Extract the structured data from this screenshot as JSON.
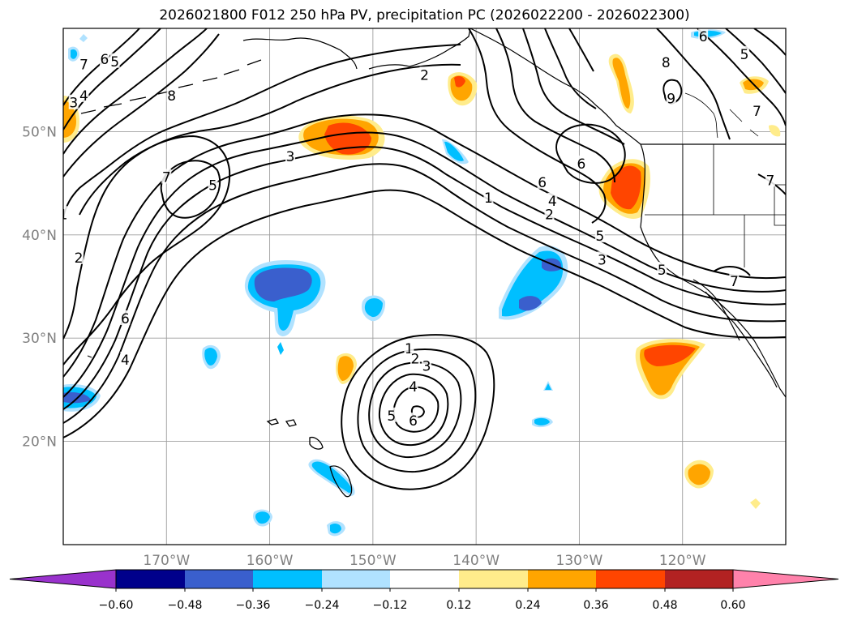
{
  "chart_data": {
    "type": "contour_map",
    "title": "2026021800 F012 250 hPa PV, precipitation PC (2026022200 - 2026022300)",
    "projection": "lat-lon",
    "lon_range": [
      -180,
      -110
    ],
    "lat_range": [
      10,
      60
    ],
    "lat_grid": [
      50,
      40,
      30,
      20
    ],
    "lon_grid": [
      -170,
      -160,
      -150,
      -140,
      -130,
      -120
    ],
    "lat_labels": [
      "50°N",
      "40°N",
      "30°N",
      "20°N"
    ],
    "lon_labels": [
      "170°W",
      "160°W",
      "150°W",
      "140°W",
      "130°W",
      "120°W"
    ],
    "colorbar": {
      "levels": [
        -0.6,
        -0.48,
        -0.36,
        -0.24,
        -0.12,
        0.12,
        0.24,
        0.36,
        0.48,
        0.6
      ],
      "tick_labels": [
        "−0.60",
        "−0.48",
        "−0.36",
        "−0.24",
        "−0.12",
        "0.12",
        "0.24",
        "0.36",
        "0.48",
        "0.60"
      ],
      "colors": [
        "#9932cc",
        "#00008b",
        "#3a5fcd",
        "#00bfff",
        "#b0e2ff",
        "#ffffff",
        "#ffec8b",
        "#ffa500",
        "#ff4500",
        "#b22222",
        "#ff82ab"
      ],
      "extend": "both"
    },
    "pv_contour_labels": [
      {
        "value": "7",
        "lon": -178.0,
        "lat": 56.5
      },
      {
        "value": "6",
        "lon": -176.0,
        "lat": 57.0
      },
      {
        "value": "5",
        "lon": -175.0,
        "lat": 56.8
      },
      {
        "value": "4",
        "lon": -178.0,
        "lat": 53.5
      },
      {
        "value": "3",
        "lon": -179.0,
        "lat": 52.8
      },
      {
        "value": "8",
        "lon": -169.5,
        "lat": 53.5
      },
      {
        "value": "2",
        "lon": -145.0,
        "lat": 55.5
      },
      {
        "value": "3",
        "lon": -158.0,
        "lat": 47.6
      },
      {
        "value": "7",
        "lon": -170.0,
        "lat": 45.6
      },
      {
        "value": "5",
        "lon": -165.5,
        "lat": 44.8
      },
      {
        "value": "1",
        "lon": -180.0,
        "lat": 42.0
      },
      {
        "value": "2",
        "lon": -178.5,
        "lat": 37.8
      },
      {
        "value": "6",
        "lon": -174.0,
        "lat": 31.9
      },
      {
        "value": "4",
        "lon": -174.0,
        "lat": 27.9
      },
      {
        "value": "1",
        "lon": -138.8,
        "lat": 43.6
      },
      {
        "value": "6",
        "lon": -133.6,
        "lat": 45.1
      },
      {
        "value": "6",
        "lon": -129.8,
        "lat": 46.9
      },
      {
        "value": "4",
        "lon": -132.6,
        "lat": 43.3
      },
      {
        "value": "2",
        "lon": -132.9,
        "lat": 42.0
      },
      {
        "value": "5",
        "lon": -128.0,
        "lat": 39.9
      },
      {
        "value": "3",
        "lon": -127.8,
        "lat": 37.6
      },
      {
        "value": "5",
        "lon": -122.0,
        "lat": 36.6
      },
      {
        "value": "7",
        "lon": -115.0,
        "lat": 35.5
      },
      {
        "value": "9",
        "lon": -121.1,
        "lat": 53.2
      },
      {
        "value": "8",
        "lon": -121.6,
        "lat": 56.7
      },
      {
        "value": "6",
        "lon": -118.0,
        "lat": 59.2
      },
      {
        "value": "5",
        "lon": -114.0,
        "lat": 57.5
      },
      {
        "value": "7",
        "lon": -112.8,
        "lat": 52.0
      },
      {
        "value": "7",
        "lon": -111.5,
        "lat": 45.3
      },
      {
        "value": "1",
        "lon": -146.5,
        "lat": 29.0
      },
      {
        "value": "2",
        "lon": -145.9,
        "lat": 28.0
      },
      {
        "value": "3",
        "lon": -144.8,
        "lat": 27.3
      },
      {
        "value": "4",
        "lon": -146.1,
        "lat": 25.3
      },
      {
        "value": "5",
        "lon": -148.2,
        "lat": 22.5
      },
      {
        "value": "6",
        "lon": -146.1,
        "lat": 22.0
      }
    ]
  }
}
